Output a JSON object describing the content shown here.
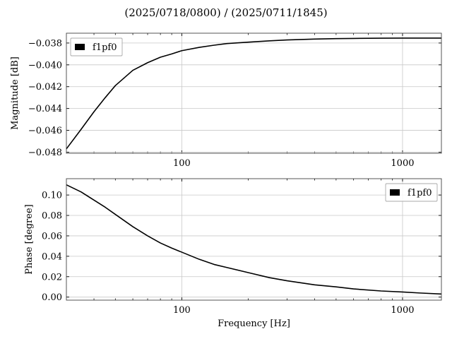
{
  "figure": {
    "title": "(2025/0718/0800) / (2025/0711/1845)"
  },
  "chart_data": [
    {
      "type": "line",
      "xscale": "log",
      "xlim": [
        30,
        1500
      ],
      "ylim": [
        -0.0481,
        -0.0371
      ],
      "xticks": [
        100,
        1000
      ],
      "xtick_labels": [
        "100",
        "1000"
      ],
      "yticks": [
        -0.048,
        -0.046,
        -0.044,
        -0.042,
        -0.04,
        -0.038
      ],
      "ytick_labels": [
        "−0.048",
        "−0.046",
        "−0.044",
        "−0.042",
        "−0.040",
        "−0.038"
      ],
      "xlabel": "",
      "ylabel": "Magnitude [dB]",
      "grid": true,
      "legend": {
        "position": "upper-left",
        "entries": [
          "f1pf0"
        ]
      },
      "series": [
        {
          "name": "f1pf0",
          "color": "#000000",
          "x": [
            30,
            35,
            40,
            45,
            50,
            60,
            70,
            80,
            90,
            100,
            120,
            140,
            160,
            200,
            250,
            300,
            400,
            500,
            600,
            800,
            1000,
            1200,
            1500
          ],
          "y": [
            -0.0477,
            -0.0459,
            -0.0443,
            -0.043,
            -0.0419,
            -0.0405,
            -0.0398,
            -0.0393,
            -0.039,
            -0.0387,
            -0.0384,
            -0.0382,
            -0.03805,
            -0.03792,
            -0.0378,
            -0.03772,
            -0.03764,
            -0.0376,
            -0.03758,
            -0.03756,
            -0.03755,
            -0.03755,
            -0.03755
          ]
        }
      ]
    },
    {
      "type": "line",
      "xscale": "log",
      "xlim": [
        30,
        1500
      ],
      "ylim": [
        -0.003,
        0.116
      ],
      "xticks": [
        100,
        1000
      ],
      "xtick_labels": [
        "100",
        "1000"
      ],
      "yticks": [
        0.0,
        0.02,
        0.04,
        0.06,
        0.08,
        0.1
      ],
      "ytick_labels": [
        "0.00",
        "0.02",
        "0.04",
        "0.06",
        "0.08",
        "0.10"
      ],
      "xlabel": "Frequency [Hz]",
      "ylabel": "Phase [degree]",
      "grid": true,
      "legend": {
        "position": "upper-right",
        "entries": [
          "f1pf0"
        ]
      },
      "series": [
        {
          "name": "f1pf0",
          "color": "#000000",
          "x": [
            30,
            35,
            40,
            45,
            50,
            60,
            70,
            80,
            90,
            100,
            120,
            140,
            160,
            200,
            250,
            300,
            400,
            500,
            600,
            800,
            1000,
            1200,
            1500
          ],
          "y": [
            0.11,
            0.103,
            0.095,
            0.088,
            0.081,
            0.069,
            0.06,
            0.053,
            0.048,
            0.044,
            0.037,
            0.032,
            0.029,
            0.024,
            0.019,
            0.016,
            0.012,
            0.01,
            0.008,
            0.006,
            0.005,
            0.004,
            0.003
          ]
        }
      ]
    }
  ]
}
